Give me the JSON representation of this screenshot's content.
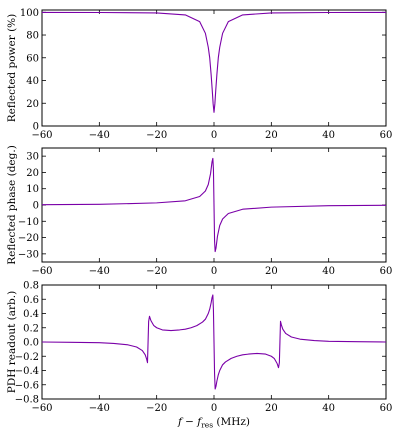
{
  "chart_data": [
    {
      "type": "line",
      "ylabel": "Reflected power (%)",
      "xlabel": "",
      "xlim": [
        -60,
        60
      ],
      "ylim": [
        0,
        102
      ],
      "xticks": [
        -60,
        -40,
        -20,
        0,
        20,
        40,
        60
      ],
      "yticks": [
        0,
        20,
        40,
        60,
        80,
        100
      ],
      "series": [
        {
          "color": "#7a00a8",
          "x": [
            -60,
            -40,
            -20,
            -10,
            -5,
            -3,
            -2,
            -1.5,
            -1,
            -0.6,
            -0.3,
            0,
            0.3,
            0.6,
            1,
            1.5,
            2,
            3,
            5,
            10,
            20,
            40,
            60
          ],
          "y": [
            99.9,
            99.8,
            99.4,
            97.7,
            91.8,
            81.5,
            69.2,
            60.0,
            45.1,
            31.0,
            19.4,
            12.0,
            19.4,
            31.0,
            45.1,
            60.0,
            69.2,
            81.5,
            91.8,
            97.7,
            99.4,
            99.8,
            99.9
          ]
        }
      ]
    },
    {
      "type": "line",
      "ylabel": "Reflected phase (deg.)",
      "xlabel": "",
      "xlim": [
        -60,
        60
      ],
      "ylim": [
        -35,
        35
      ],
      "xticks": [
        -60,
        -40,
        -20,
        0,
        20,
        40,
        60
      ],
      "yticks": [
        -30,
        -20,
        -10,
        0,
        10,
        20,
        30
      ],
      "series": [
        {
          "color": "#7a00a8",
          "x": [
            -60,
            -40,
            -20,
            -10,
            -5,
            -3,
            -2,
            -1.2,
            -0.7,
            -0.4,
            -0.2,
            0,
            0.2,
            0.4,
            0.7,
            1.2,
            2,
            3,
            5,
            10,
            20,
            40,
            60
          ],
          "y": [
            0.2,
            0.4,
            1.3,
            2.6,
            5.2,
            8.6,
            12.6,
            19.3,
            26.4,
            28.6,
            22.0,
            0,
            -22.0,
            -28.6,
            -26.4,
            -19.3,
            -12.6,
            -8.6,
            -5.2,
            -2.6,
            -1.3,
            -0.4,
            -0.2
          ]
        }
      ]
    },
    {
      "type": "line",
      "ylabel": "PDH readout (arb.)",
      "xlabel": "f − f_res (MHz)",
      "xlabel_main": "f − f",
      "xlabel_sub": "res",
      "xlabel_unit": " (MHz)",
      "xlim": [
        -60,
        60
      ],
      "ylim": [
        -0.8,
        0.8
      ],
      "xticks": [
        -60,
        -40,
        -20,
        0,
        20,
        40,
        60
      ],
      "yticks": [
        -0.8,
        -0.6,
        -0.4,
        -0.2,
        0.0,
        0.2,
        0.4,
        0.6,
        0.8
      ],
      "series": [
        {
          "color": "#7a00a8",
          "x": [
            -60,
            -50,
            -40,
            -35,
            -30,
            -27,
            -25,
            -24,
            -23.5,
            -23.2,
            -23,
            -22.8,
            -22.5,
            -22,
            -21,
            -20,
            -18,
            -15,
            -12,
            -10,
            -8,
            -6,
            -4,
            -3,
            -2,
            -1.5,
            -1,
            -0.7,
            -0.4,
            -0.2,
            0,
            0.2,
            0.4,
            0.7,
            1,
            1.5,
            2,
            3,
            4,
            6,
            8,
            10,
            12,
            15,
            18,
            20,
            21,
            22,
            22.5,
            22.8,
            23,
            23.2,
            23.5,
            24,
            25,
            27,
            30,
            35,
            40,
            50,
            60
          ],
          "y": [
            0.0,
            -0.005,
            -0.01,
            -0.02,
            -0.04,
            -0.07,
            -0.12,
            -0.18,
            -0.24,
            -0.29,
            0.0,
            0.29,
            0.36,
            0.3,
            0.23,
            0.2,
            0.17,
            0.16,
            0.17,
            0.18,
            0.2,
            0.23,
            0.28,
            0.32,
            0.4,
            0.46,
            0.55,
            0.62,
            0.66,
            0.45,
            0.0,
            -0.45,
            -0.66,
            -0.62,
            -0.55,
            -0.46,
            -0.4,
            -0.32,
            -0.28,
            -0.23,
            -0.2,
            -0.18,
            -0.17,
            -0.16,
            -0.17,
            -0.2,
            -0.23,
            -0.3,
            -0.36,
            -0.29,
            0.0,
            0.29,
            0.24,
            0.18,
            0.12,
            0.07,
            0.04,
            0.02,
            0.01,
            0.005,
            0.0
          ]
        }
      ]
    }
  ]
}
